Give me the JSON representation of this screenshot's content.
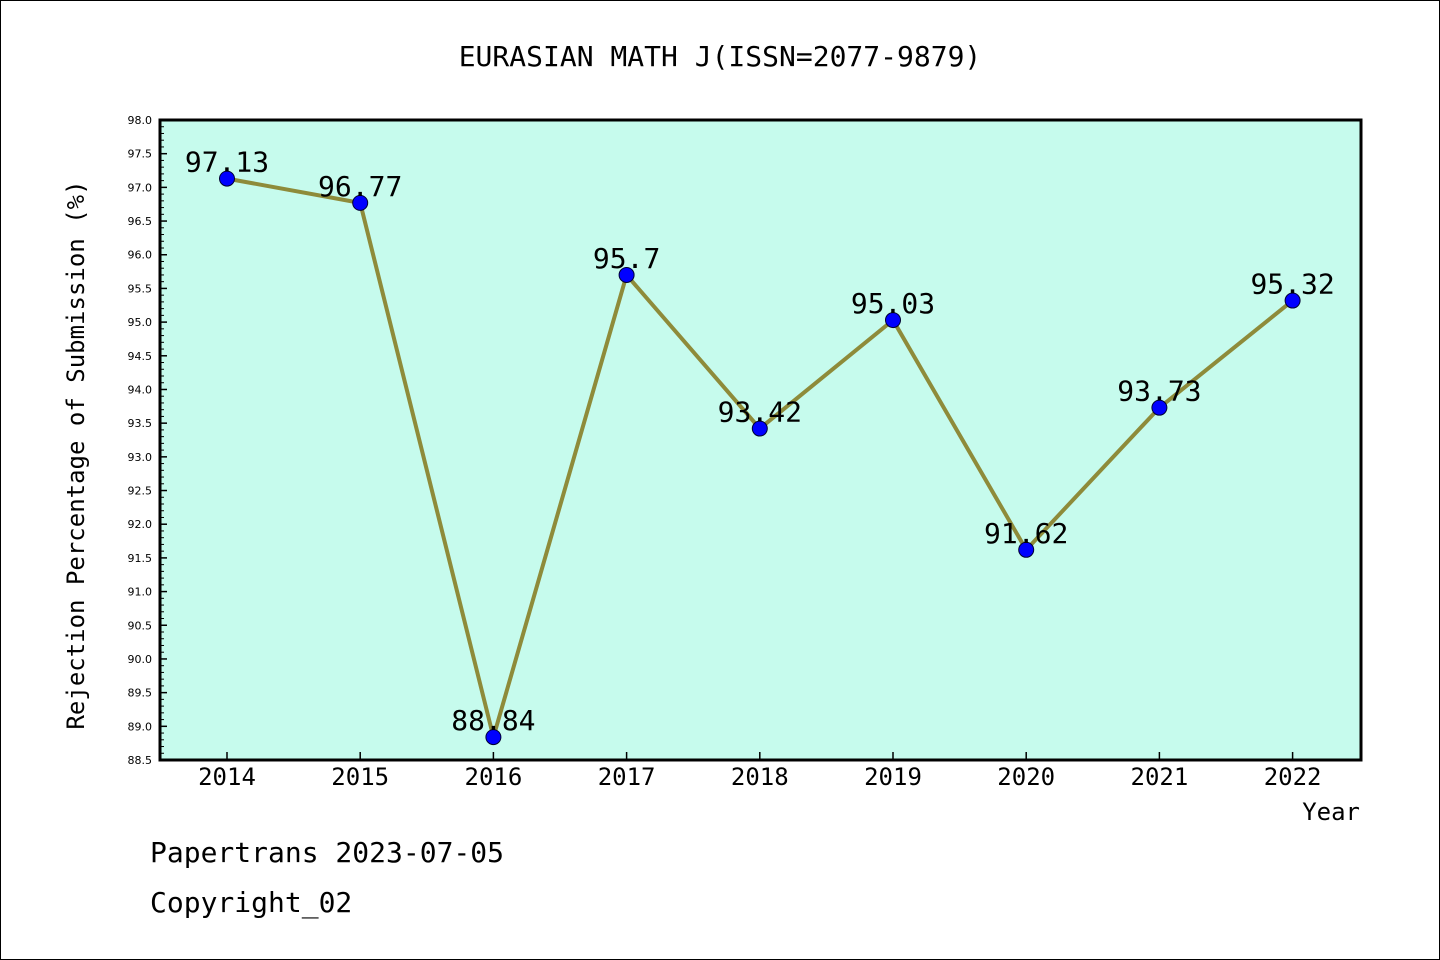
{
  "chart_data": {
    "type": "line",
    "title": "EURASIAN MATH J(ISSN=2077-9879)",
    "xlabel": "Year",
    "ylabel": "Rejection Percentage of Submission (%)",
    "categories": [
      "2014",
      "2015",
      "2016",
      "2017",
      "2018",
      "2019",
      "2020",
      "2021",
      "2022"
    ],
    "values": [
      97.13,
      96.77,
      88.84,
      95.7,
      93.42,
      95.03,
      91.62,
      93.73,
      95.32
    ],
    "data_labels": [
      "97.13",
      "96.77",
      "88.84",
      "95.7",
      "93.42",
      "95.03",
      "91.62",
      "93.73",
      "95.32"
    ],
    "ylim": [
      88.5,
      98.0
    ],
    "yticks": [
      "88.5",
      "89.0",
      "89.5",
      "90.0",
      "90.5",
      "91.0",
      "91.5",
      "92.0",
      "92.5",
      "93.0",
      "93.5",
      "94.0",
      "94.5",
      "95.0",
      "95.5",
      "96.0",
      "96.5",
      "97.0",
      "97.5",
      "98.0"
    ],
    "grid": false,
    "colors": {
      "plot_background": "#c6fbed",
      "line": "#8e8b3a",
      "marker": "#0000ff"
    }
  },
  "footer": {
    "line1": "Papertrans 2023-07-05",
    "line2": "Copyright_02"
  }
}
